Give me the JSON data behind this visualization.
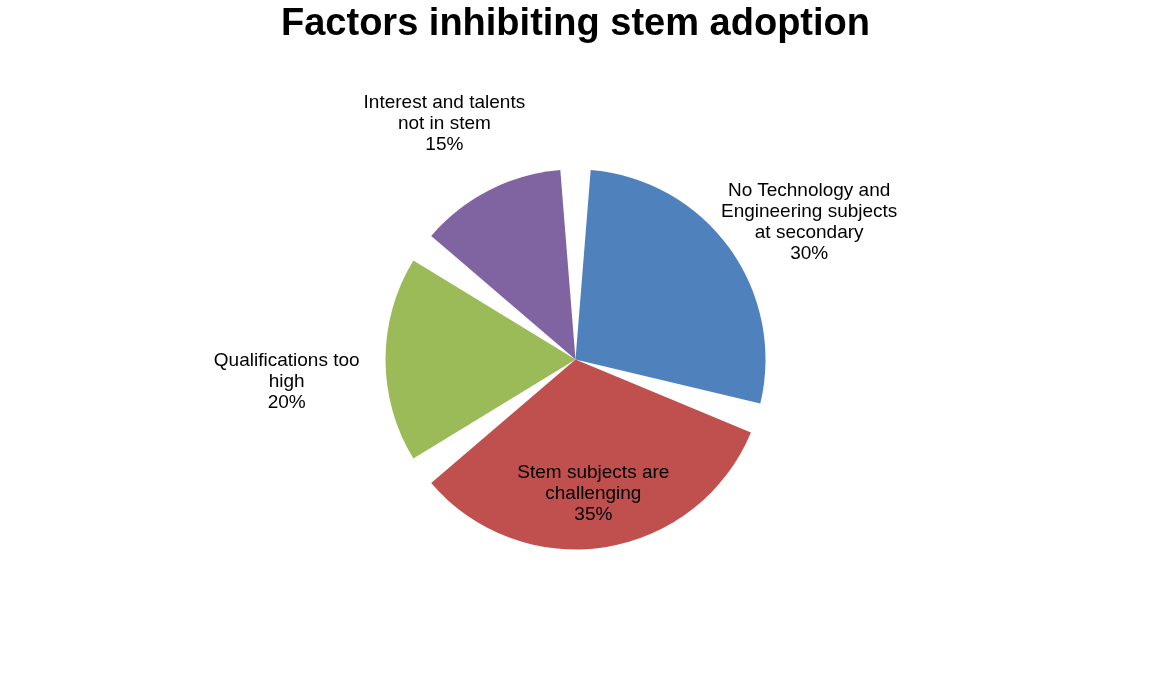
{
  "chart_data": {
    "type": "pie",
    "title": "Factors inhibiting stem adoption",
    "categories": [
      "No Technology and Engineering subjects at secondary",
      "Stem subjects are challenging",
      "Qualifications too high",
      "Interest and talents not in stem"
    ],
    "values": [
      30,
      35,
      20,
      15
    ],
    "value_labels": [
      "30%",
      "35%",
      "20%",
      "15%"
    ],
    "colors": [
      "#4f81bd",
      "#c0504d",
      "#9bbb59",
      "#8064a2"
    ],
    "legend": false
  }
}
